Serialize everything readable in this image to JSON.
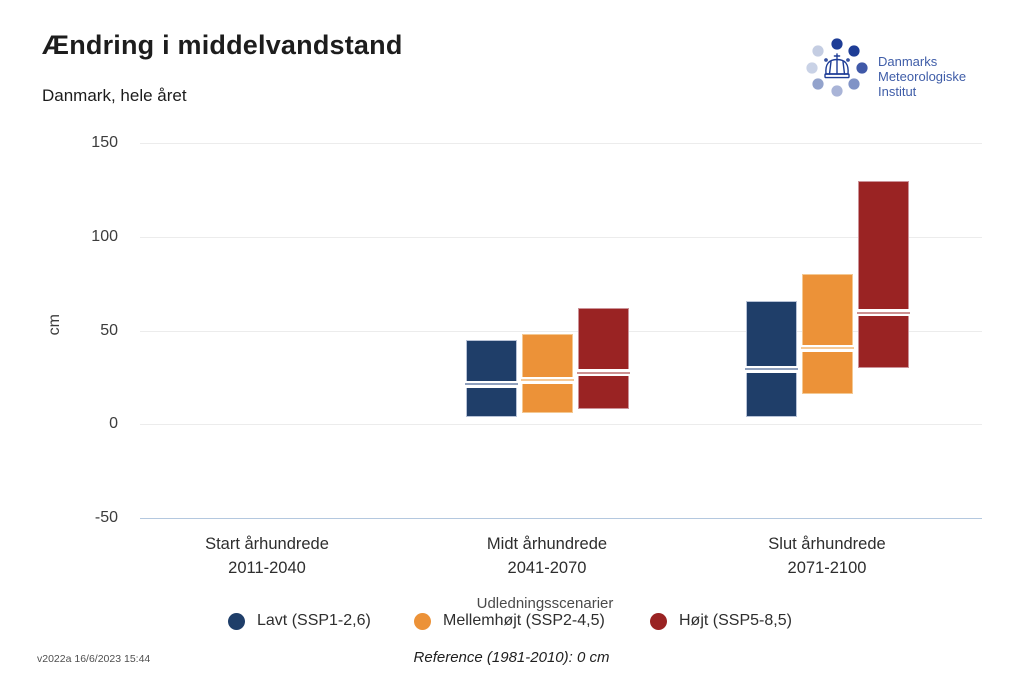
{
  "header": {
    "title": "Ændring i middelvandstand",
    "subtitle": "Danmark, hele året"
  },
  "logo": {
    "org_lines": [
      "Danmarks",
      "Meteorologiske",
      "Institut"
    ],
    "text_color": "#3f5da8",
    "dot_colors_clockwise_from_top": [
      "#1e3d96",
      "#1e3d96",
      "#4059a8",
      "#8093c6",
      "#a9b4d7",
      "#93a3cc",
      "#c9d2e6",
      "#c4cde2"
    ]
  },
  "chart_data": {
    "type": "bar",
    "variant": "floating-range-bars-with-median-line",
    "title": "Ændring i middelvandstand",
    "subtitle": "Danmark, hele året",
    "ylabel": "cm",
    "unit": "cm",
    "ylim": [
      -50,
      150
    ],
    "yticks": [
      150,
      100,
      50,
      0,
      -50
    ],
    "grid_color": "#ececec",
    "baseline_color": "#b4c8df",
    "categories": [
      {
        "label": "Start århundrede",
        "period": "2011-2040"
      },
      {
        "label": "Midt århundrede",
        "period": "2041-2070"
      },
      {
        "label": "Slut århundrede",
        "period": "2071-2100"
      }
    ],
    "legend_title": "Udledningsscenarier",
    "series": [
      {
        "name": "Lavt (SSP1-2,6)",
        "color": "#1f3e69",
        "border_color": "#b7c2d6",
        "median_line_color": "#8fa0bd",
        "values": [
          null,
          {
            "min": 4,
            "median": 22,
            "max": 45
          },
          {
            "min": 4,
            "median": 30,
            "max": 66
          }
        ]
      },
      {
        "name": "Mellemhøjt (SSP2-4,5)",
        "color": "#ec9238",
        "border_color": "#f4c892",
        "median_line_color": "#f6c996",
        "values": [
          null,
          {
            "min": 6,
            "median": 24,
            "max": 48
          },
          {
            "min": 16,
            "median": 41,
            "max": 80
          }
        ]
      },
      {
        "name": "Højt (SSP5-8,5)",
        "color": "#9a2323",
        "border_color": "#cc9298",
        "median_line_color": "#cd9191",
        "values": [
          null,
          {
            "min": 8,
            "median": 28,
            "max": 62
          },
          {
            "min": 30,
            "median": 60,
            "max": 130
          }
        ]
      }
    ],
    "reference_note": "Reference (1981-2010): 0 cm",
    "version_stamp": "v2022a 16/6/2023 15:44"
  }
}
